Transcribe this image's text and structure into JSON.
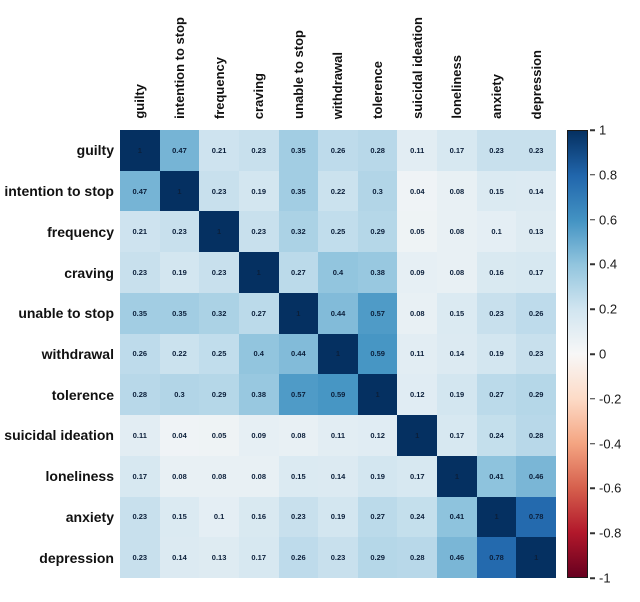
{
  "figure": {
    "background": "#ffffff",
    "cell_text_color": "#0b1f3a"
  },
  "chart_data": {
    "type": "heatmap",
    "title": "",
    "variables": [
      "guilty",
      "intention to stop",
      "frequency",
      "craving",
      "unable to stop",
      "withdrawal",
      "tolerence",
      "suicidal ideation",
      "loneliness",
      "anxiety",
      "depression"
    ],
    "matrix": [
      [
        1,
        0.47,
        0.21,
        0.23,
        0.35,
        0.26,
        0.28,
        0.11,
        0.17,
        0.23,
        0.23
      ],
      [
        0.47,
        1,
        0.23,
        0.19,
        0.35,
        0.22,
        0.3,
        0.04,
        0.08,
        0.15,
        0.14
      ],
      [
        0.21,
        0.23,
        1,
        0.23,
        0.32,
        0.25,
        0.29,
        0.05,
        0.08,
        0.1,
        0.13
      ],
      [
        0.23,
        0.19,
        0.23,
        1,
        0.27,
        0.4,
        0.38,
        0.09,
        0.08,
        0.16,
        0.17
      ],
      [
        0.35,
        0.35,
        0.32,
        0.27,
        1,
        0.44,
        0.57,
        0.08,
        0.15,
        0.23,
        0.26
      ],
      [
        0.26,
        0.22,
        0.25,
        0.4,
        0.44,
        1,
        0.59,
        0.11,
        0.14,
        0.19,
        0.23
      ],
      [
        0.28,
        0.3,
        0.29,
        0.38,
        0.57,
        0.59,
        1,
        0.12,
        0.19,
        0.27,
        0.29
      ],
      [
        0.11,
        0.04,
        0.05,
        0.09,
        0.08,
        0.11,
        0.12,
        1,
        0.17,
        0.24,
        0.28
      ],
      [
        0.17,
        0.08,
        0.08,
        0.08,
        0.15,
        0.14,
        0.19,
        0.17,
        1,
        0.41,
        0.46
      ],
      [
        0.23,
        0.15,
        0.1,
        0.16,
        0.23,
        0.19,
        0.27,
        0.24,
        0.41,
        1,
        0.78
      ],
      [
        0.23,
        0.14,
        0.13,
        0.17,
        0.26,
        0.23,
        0.29,
        0.28,
        0.46,
        0.78,
        1
      ]
    ],
    "value_range": [
      -1,
      1
    ],
    "grid": false,
    "colorbar": {
      "position": "right",
      "tick_labels": [
        "1",
        "0.8",
        "0.6",
        "0.4",
        "0.2",
        "0",
        "-0.2",
        "-0.4",
        "-0.6",
        "-0.8",
        "-1"
      ],
      "tick_values": [
        1,
        0.8,
        0.6,
        0.4,
        0.2,
        0,
        -0.2,
        -0.4,
        -0.6,
        -0.8,
        -1
      ],
      "colormap": "RdBu",
      "gradient_anchors_low_to_high": [
        "#67001f",
        "#b2182b",
        "#d6604d",
        "#f4a582",
        "#fddbc7",
        "#f7f7f7",
        "#d1e5f0",
        "#92c5de",
        "#4393c3",
        "#2166ac",
        "#053061"
      ]
    }
  }
}
